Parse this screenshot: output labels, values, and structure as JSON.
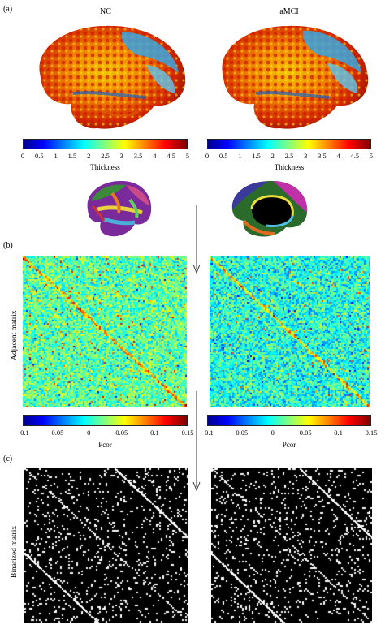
{
  "panels": {
    "a": {
      "label": "(a)",
      "left_title": "NC",
      "right_title": "aMCI",
      "colorbar": {
        "ticks": [
          "0",
          "0.5",
          "1",
          "1.5",
          "2",
          "2.5",
          "3",
          "3.5",
          "4",
          "4.5",
          "5"
        ],
        "title": "Thickness"
      }
    },
    "b": {
      "label": "(b)",
      "ylabel": "Adjacent matrix",
      "colorbar": {
        "ticks": [
          "−0.1",
          "−0.05",
          "0",
          "0.05",
          "0.1",
          "0.15"
        ],
        "title": "Pcor"
      }
    },
    "c": {
      "label": "(c)",
      "ylabel": "Binarized matrix"
    }
  },
  "colors": {
    "jet": [
      "#00008f",
      "#0000ff",
      "#00ffff",
      "#ffff00",
      "#ff0000",
      "#800000"
    ]
  }
}
